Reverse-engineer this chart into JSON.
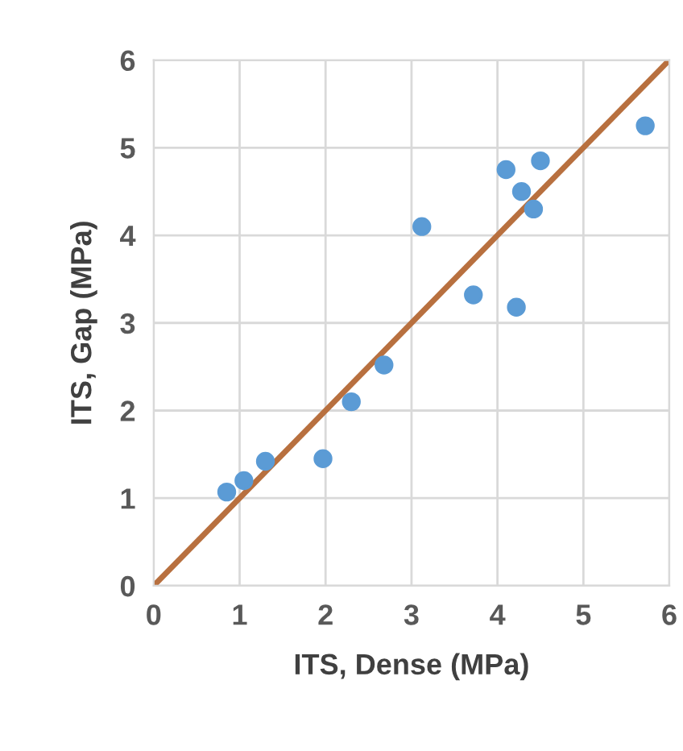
{
  "chart_data": {
    "type": "scatter",
    "xlabel": "ITS, Dense (MPa)",
    "ylabel": "ITS, Gap (MPa)",
    "xlim": [
      0,
      6
    ],
    "ylim": [
      0,
      6
    ],
    "xticks": [
      0,
      1,
      2,
      3,
      4,
      5,
      6
    ],
    "yticks": [
      0,
      1,
      2,
      3,
      4,
      5,
      6
    ],
    "grid": true,
    "series": [
      {
        "marker": "circle",
        "color": "#5b9bd5",
        "x": [
          0.85,
          1.05,
          1.3,
          1.97,
          2.3,
          2.68,
          3.12,
          3.72,
          4.22,
          4.1,
          4.28,
          4.42,
          4.5,
          5.72
        ],
        "values": [
          1.07,
          1.2,
          1.42,
          1.45,
          2.1,
          2.52,
          4.1,
          3.32,
          3.18,
          4.75,
          4.5,
          4.3,
          4.85,
          5.25
        ]
      },
      {
        "type": "line",
        "color": "#b8703f",
        "x": [
          0,
          6
        ],
        "values": [
          0,
          6
        ],
        "line_style": "solid",
        "marker": "none"
      }
    ]
  }
}
